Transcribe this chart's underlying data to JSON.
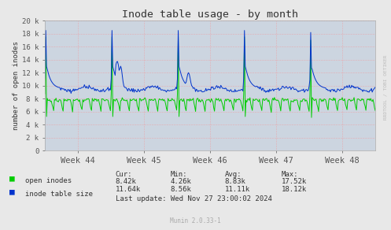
{
  "title": "Inode table usage - by month",
  "ylabel": "number of open inodes",
  "background_color": "#e8e8e8",
  "plot_bg_color": "#ccd5e0",
  "grid_color": "#ff8888",
  "line1_color": "#00cc00",
  "line2_color": "#0033cc",
  "ylim": [
    0,
    20000
  ],
  "yticks": [
    0,
    2000,
    4000,
    6000,
    8000,
    10000,
    12000,
    14000,
    16000,
    18000,
    20000
  ],
  "ytick_labels": [
    "0",
    "2 k",
    "4 k",
    "6 k",
    "8 k",
    "10 k",
    "12 k",
    "14 k",
    "16 k",
    "18 k",
    "20 k"
  ],
  "week_labels": [
    "Week 44",
    "Week 45",
    "Week 46",
    "Week 47",
    "Week 48"
  ],
  "legend": [
    "open inodes",
    "inode table size"
  ],
  "legend_colors": [
    "#00cc00",
    "#0033cc"
  ],
  "stats_headers": [
    "Cur:",
    "Min:",
    "Avg:",
    "Max:"
  ],
  "stats_line1": [
    "8.42k",
    "4.26k",
    "8.83k",
    "17.52k"
  ],
  "stats_line2": [
    "11.64k",
    "8.56k",
    "11.11k",
    "18.12k"
  ],
  "last_update": "Last update: Wed Nov 27 23:00:02 2024",
  "munin_version": "Munin 2.0.33-1",
  "rrdtool_label": "RRDTOOL / TOBI OETIKER"
}
